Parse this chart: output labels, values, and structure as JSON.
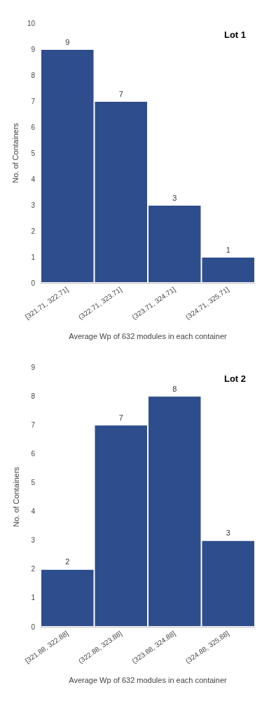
{
  "chart_data": [
    {
      "type": "bar",
      "title": "Lot 1",
      "xlabel": "Average Wp of 632 modules in each container",
      "ylabel": "No. of Containers",
      "categories": [
        "[321.71, 322.71]",
        "(322.71, 323.71]",
        "(323.71, 324.71]",
        "(324.71, 325.71]"
      ],
      "values": [
        9,
        7,
        3,
        1
      ],
      "color": "#2e4d8c",
      "ylim": [
        0,
        10
      ],
      "yticks": [
        0,
        1,
        2,
        3,
        4,
        5,
        6,
        7,
        8,
        9,
        10
      ],
      "data_labels": true,
      "grid": false
    },
    {
      "type": "bar",
      "title": "Lot 2",
      "xlabel": "Average Wp of 632 modules in each container",
      "ylabel": "No. of Containers",
      "categories": [
        "[321.88, 322.88]",
        "(322.88, 323.88]",
        "(323.88, 324.88]",
        "(324.88, 325.88]"
      ],
      "values": [
        2,
        7,
        8,
        3
      ],
      "color": "#2e4d8c",
      "ylim": [
        0,
        9
      ],
      "yticks": [
        0,
        1,
        2,
        3,
        4,
        5,
        6,
        7,
        8,
        9
      ],
      "data_labels": true,
      "grid": false
    }
  ]
}
